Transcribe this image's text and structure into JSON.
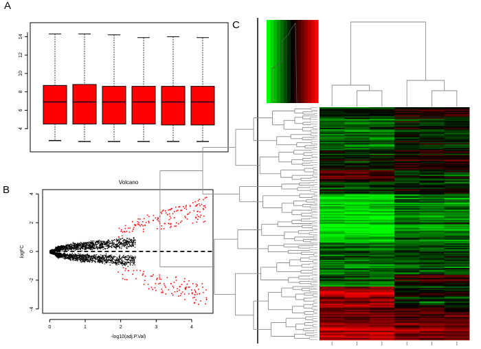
{
  "panels": {
    "a": "A",
    "b": "B",
    "c": "C"
  },
  "chart_data": [
    {
      "type": "boxplot",
      "panel": "A",
      "title": "",
      "xlabel": "",
      "ylabel": "",
      "ylim": [
        2,
        15
      ],
      "yticks": [
        4,
        6,
        8,
        10,
        12,
        14
      ],
      "box_color": "#ff0000",
      "boxes": [
        {
          "min": 2.7,
          "q1": 4.5,
          "median": 6.9,
          "q3": 8.7,
          "max": 14.3
        },
        {
          "min": 2.6,
          "q1": 4.5,
          "median": 6.9,
          "q3": 8.8,
          "max": 14.3
        },
        {
          "min": 2.6,
          "q1": 4.5,
          "median": 6.9,
          "q3": 8.6,
          "max": 14.2
        },
        {
          "min": 2.6,
          "q1": 4.5,
          "median": 6.9,
          "q3": 8.6,
          "max": 13.9
        },
        {
          "min": 2.6,
          "q1": 4.4,
          "median": 6.9,
          "q3": 8.6,
          "max": 14.0
        },
        {
          "min": 2.6,
          "q1": 4.4,
          "median": 6.9,
          "q3": 8.6,
          "max": 13.9
        }
      ]
    },
    {
      "type": "scatter",
      "panel": "B",
      "title": "Volcano",
      "xlabel": "-log10(adj.P.Val)",
      "ylabel": "logFC",
      "xlim": [
        -0.2,
        4.6
      ],
      "ylim": [
        -4.3,
        4.3
      ],
      "xticks": [
        0,
        1,
        2,
        3,
        4
      ],
      "yticks": [
        -4,
        -2,
        0,
        2,
        4
      ],
      "hline_y": 0,
      "colors": {
        "significant": "#ff0000",
        "other": "#000000"
      },
      "note": "Thousands of genes; black points form a dense sideways-V near logFC 0, red (significant) points spread out at larger |logFC|.",
      "sample_points": {
        "significant": [
          [
            2.1,
            1.4
          ],
          [
            2.5,
            1.9
          ],
          [
            2.9,
            2.2
          ],
          [
            3.3,
            2.6
          ],
          [
            3.7,
            2.9
          ],
          [
            4.1,
            3.2
          ],
          [
            4.4,
            3.8
          ],
          [
            2.2,
            -1.3
          ],
          [
            2.6,
            -1.6
          ],
          [
            3.0,
            -1.9
          ],
          [
            3.4,
            -2.2
          ],
          [
            3.8,
            -2.5
          ],
          [
            4.2,
            -2.9
          ],
          [
            4.4,
            -3.3
          ]
        ]
      }
    },
    {
      "type": "heatmap",
      "panel": "C",
      "title": "",
      "columns": 6,
      "rows": 200,
      "column_clusters": [
        [
          1,
          2,
          3
        ],
        [
          4,
          5,
          6
        ]
      ],
      "color_scale": {
        "low": "#00ff00",
        "mid": "#000000",
        "high": "#ff0000"
      },
      "row_blocks": [
        {
          "label": "top rows",
          "left_group": "dark green",
          "right_group": "dark / red"
        },
        {
          "label": "middle rows",
          "left_group": "bright green",
          "right_group": "green"
        },
        {
          "label": "bottom rows",
          "left_group": "red",
          "right_group": "dark red / black"
        }
      ]
    }
  ]
}
